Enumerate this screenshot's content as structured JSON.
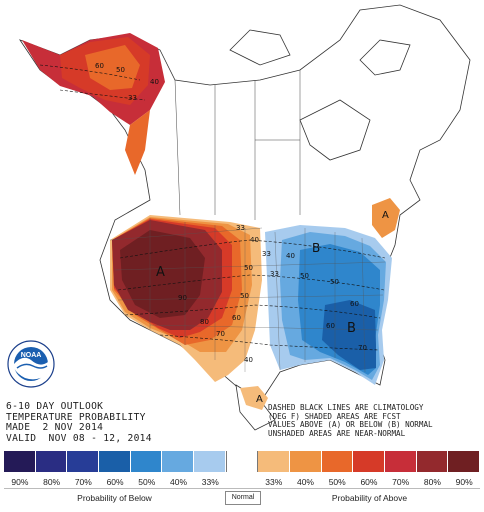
{
  "title": {
    "line1": "6-10 DAY OUTLOOK",
    "line2": "TEMPERATURE PROBABILITY",
    "line3": "MADE  2 NOV 2014",
    "line4": "VALID  NOV 08 - 12, 2014"
  },
  "notes": {
    "line1": "DASHED BLACK LINES ARE CLIMATOLOGY",
    "line2": "(DEG F) SHADED AREAS ARE FCST",
    "line3": "VALUES ABOVE (A) OR BELOW (B) NORMAL",
    "line4": "UNSHADED AREAS ARE NEAR-NORMAL"
  },
  "logo": {
    "text": "NOAA",
    "icon": "noaa-logo-icon"
  },
  "map_labels": {
    "above": "A",
    "below": "B",
    "contours": [
      "60",
      "50",
      "40",
      "33",
      "33",
      "40",
      "50",
      "50",
      "60",
      "70",
      "80",
      "90",
      "60",
      "50",
      "70",
      "60",
      "50",
      "40",
      "33",
      "33",
      "40"
    ]
  },
  "legend": {
    "colors": [
      "#241a57",
      "#2a2d83",
      "#273d97",
      "#1a5fa8",
      "#2f86cc",
      "#66a9e0",
      "#a7cbee",
      "#ffffff",
      "#f5bb7a",
      "#ee9444",
      "#e8682a",
      "#d63a28",
      "#c72e39",
      "#93292d",
      "#6f1f22"
    ],
    "labels": [
      "90%",
      "80%",
      "70%",
      "60%",
      "50%",
      "40%",
      "33%",
      "",
      "33%",
      "40%",
      "50%",
      "60%",
      "70%",
      "80%",
      "90%"
    ],
    "below_caption": "Probability of Below",
    "normal_caption": "Normal",
    "above_caption": "Probability of Above"
  }
}
